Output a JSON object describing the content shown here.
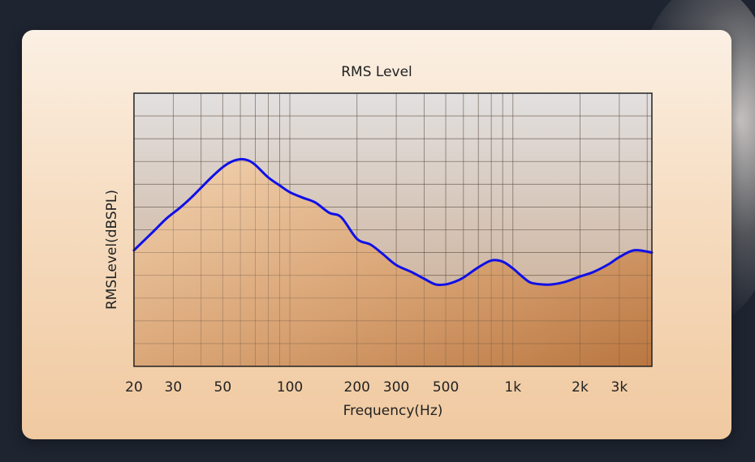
{
  "chart_data": {
    "type": "area",
    "title": "RMS Level",
    "xlabel": "Frequency(Hz)",
    "ylabel": "RMSLevel(dBSPL)",
    "x_scale": "log",
    "x_ticks": [
      {
        "value": 20,
        "label": "20"
      },
      {
        "value": 30,
        "label": "30"
      },
      {
        "value": 50,
        "label": "50"
      },
      {
        "value": 100,
        "label": "100"
      },
      {
        "value": 200,
        "label": "200"
      },
      {
        "value": 300,
        "label": "300"
      },
      {
        "value": 500,
        "label": "500"
      },
      {
        "value": 1000,
        "label": "1k"
      },
      {
        "value": 2000,
        "label": "2k"
      },
      {
        "value": 3000,
        "label": "3k"
      }
    ],
    "xlim": [
      20,
      4200
    ],
    "ylim": [
      0,
      12
    ],
    "grid": true,
    "series": [
      {
        "color": "#1010e6",
        "x": [
          20,
          24,
          28,
          32,
          36,
          40,
          45,
          50,
          55,
          60,
          65,
          70,
          80,
          90,
          100,
          115,
          130,
          150,
          170,
          200,
          230,
          260,
          300,
          350,
          400,
          450,
          500,
          550,
          600,
          700,
          800,
          900,
          1000,
          1100,
          1200,
          1350,
          1500,
          1700,
          2000,
          2300,
          2700,
          3000,
          3500,
          4200
        ],
        "y": [
          5.1,
          5.85,
          6.5,
          6.95,
          7.4,
          7.85,
          8.35,
          8.75,
          9.0,
          9.1,
          9.05,
          8.85,
          8.3,
          7.95,
          7.65,
          7.4,
          7.2,
          6.75,
          6.55,
          5.6,
          5.35,
          4.95,
          4.45,
          4.15,
          3.85,
          3.6,
          3.6,
          3.72,
          3.9,
          4.35,
          4.65,
          4.6,
          4.3,
          3.95,
          3.68,
          3.6,
          3.6,
          3.7,
          3.95,
          4.15,
          4.5,
          4.8,
          5.1,
          5.0
        ]
      }
    ]
  }
}
